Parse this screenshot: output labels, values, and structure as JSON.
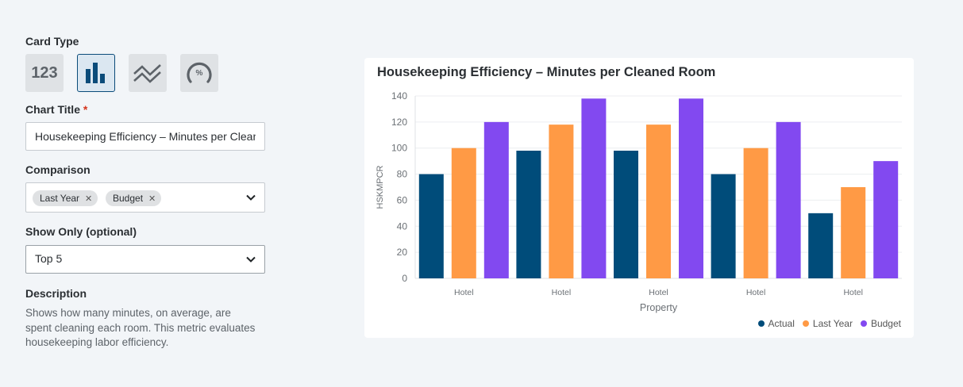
{
  "form": {
    "card_type_label": "Card Type",
    "card_types": [
      {
        "name": "number",
        "text": "123",
        "active": false
      },
      {
        "name": "bar-chart",
        "active": true
      },
      {
        "name": "line-chart",
        "active": false
      },
      {
        "name": "gauge",
        "text": "%",
        "active": false
      }
    ],
    "chart_title_label": "Chart Title",
    "required_mark": "*",
    "chart_title_value": "Housekeeping Efficiency – Minutes per Cleaned Room",
    "comparison_label": "Comparison",
    "comparison_chips": [
      "Last Year",
      "Budget"
    ],
    "chip_remove": "✕",
    "show_only_label": "Show Only (optional)",
    "show_only_value": "Top 5",
    "description_label": "Description",
    "description_text": "Shows how many minutes, on average, are spent cleaning each room. This metric evaluates housekeeping labor efficiency."
  },
  "chart_card": {
    "title": "Housekeeping Efficiency – Minutes per Cleaned Room"
  },
  "colors": {
    "actual": "#004c7a",
    "last_year": "#ff9a45",
    "budget": "#8249f0",
    "accent": "#0b4c7a"
  },
  "chart_data": {
    "type": "bar",
    "categories": [
      "Hotel",
      "Hotel",
      "Hotel",
      "Hotel",
      "Hotel"
    ],
    "series": [
      {
        "name": "Actual",
        "values": [
          80,
          98,
          98,
          80,
          50
        ],
        "color": "#004c7a"
      },
      {
        "name": "Last Year",
        "values": [
          100,
          118,
          118,
          100,
          70
        ],
        "color": "#ff9a45"
      },
      {
        "name": "Budget",
        "values": [
          120,
          138,
          138,
          120,
          90
        ],
        "color": "#8249f0"
      }
    ],
    "xlabel": "Property",
    "ylabel": "HSKMPCR",
    "ylim": [
      0,
      140
    ],
    "yticks": [
      0,
      20,
      40,
      60,
      80,
      100,
      120,
      140
    ],
    "grid": true,
    "legend": "bottom-right"
  }
}
